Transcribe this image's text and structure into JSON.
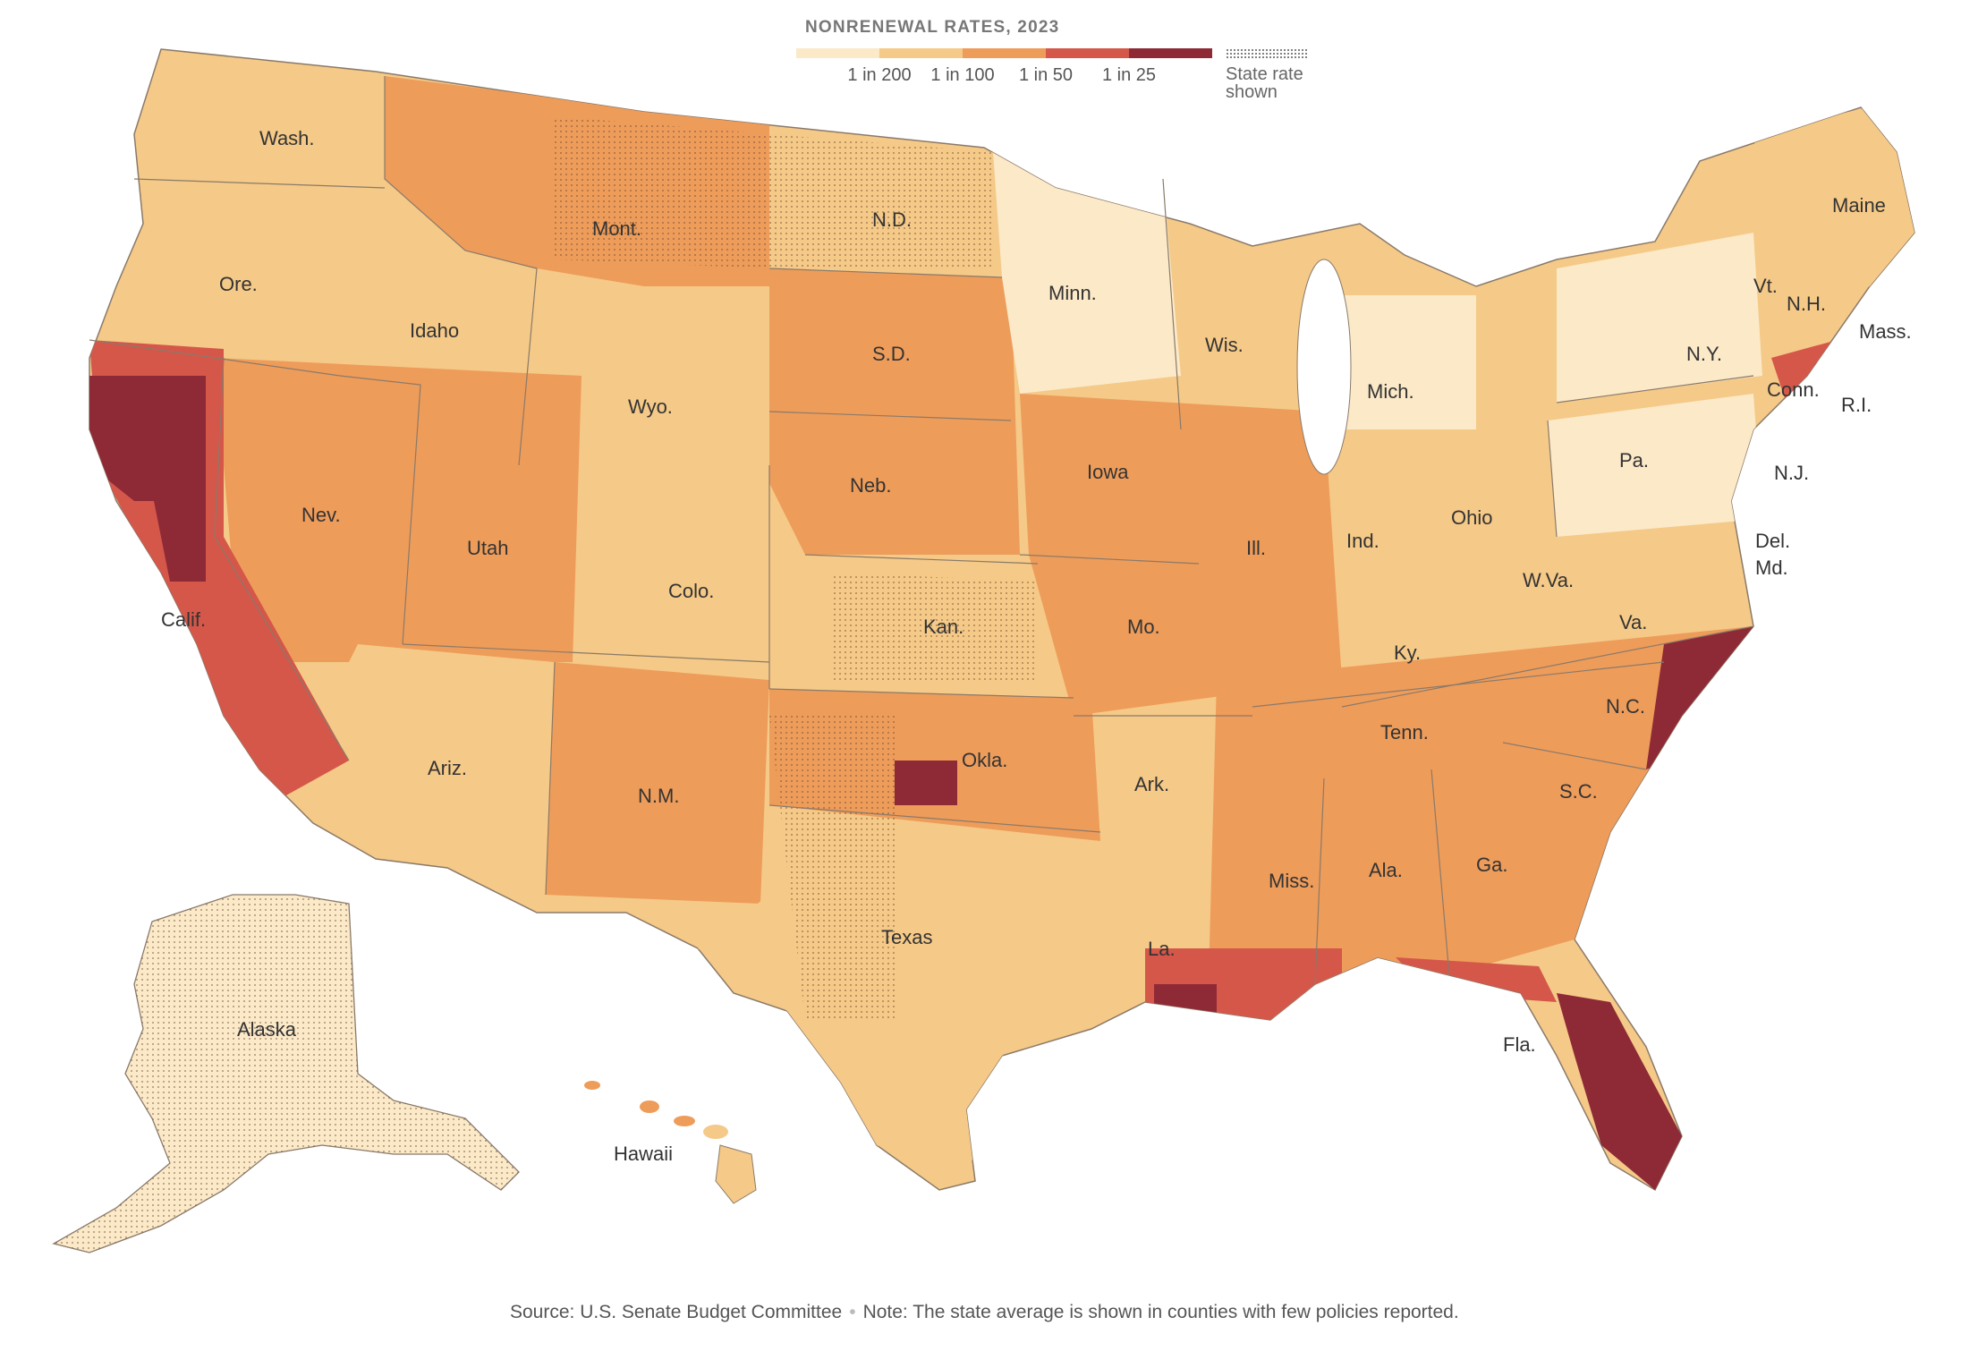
{
  "legend": {
    "title": "NONRENEWAL RATES, 2023",
    "ticks": [
      "1 in 200",
      "1 in 100",
      "1 in 50",
      "1 in 25"
    ],
    "colors": [
      "#fbe9c8",
      "#f5c987",
      "#ee9c5a",
      "#d4574a",
      "#8e2a36"
    ],
    "state_rate_label_line1": "State rate",
    "state_rate_label_line2": "shown"
  },
  "state_labels": [
    "Wash.",
    "Ore.",
    "Idaho",
    "Mont.",
    "N.D.",
    "Minn.",
    "Wyo.",
    "S.D.",
    "Wis.",
    "Mich.",
    "Maine",
    "Vt.",
    "N.H.",
    "Mass.",
    "N.Y.",
    "Conn.",
    "R.I.",
    "Pa.",
    "N.J.",
    "Nev.",
    "Utah",
    "Calif.",
    "Colo.",
    "Neb.",
    "Iowa",
    "Ill.",
    "Ind.",
    "Ohio",
    "Del.",
    "Md.",
    "W.Va.",
    "Va.",
    "Kan.",
    "Mo.",
    "Ky.",
    "Ariz.",
    "N.M.",
    "Okla.",
    "Ark.",
    "Tenn.",
    "N.C.",
    "S.C.",
    "Miss.",
    "Ala.",
    "Ga.",
    "La.",
    "Texas",
    "Fla.",
    "Alaska",
    "Hawaii"
  ],
  "source": {
    "source_text": "Source: U.S. Senate Budget Committee",
    "separator": "•",
    "note_text": "Note: The state average is shown in counties with few policies reported."
  }
}
